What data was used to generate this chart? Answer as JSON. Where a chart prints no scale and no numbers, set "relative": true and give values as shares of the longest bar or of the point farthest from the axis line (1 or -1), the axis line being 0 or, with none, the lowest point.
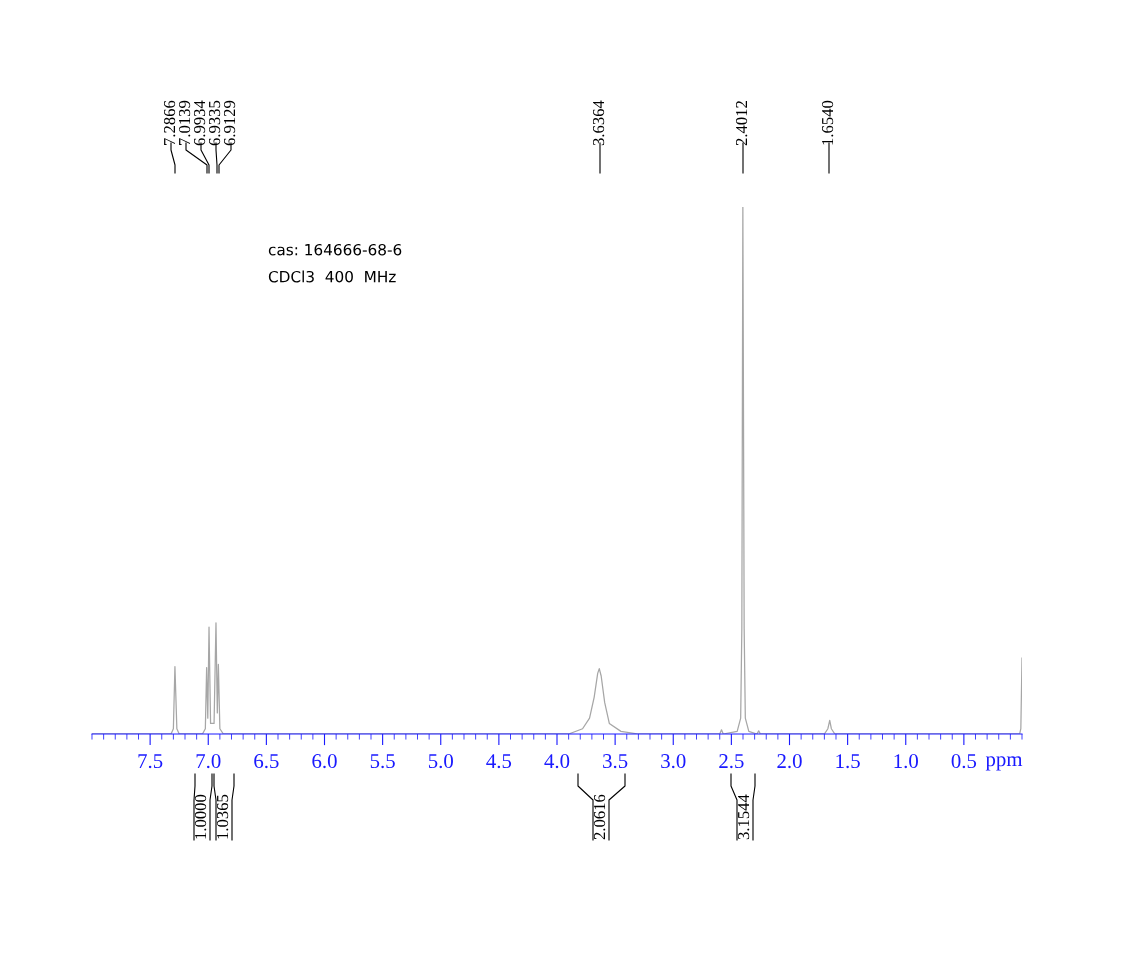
{
  "chart_data": {
    "type": "line",
    "relative": true,
    "xlabel": "ppm",
    "x": [
      8.0,
      7.32,
      7.3,
      7.2866,
      7.27,
      7.25,
      7.05,
      7.025,
      7.0139,
      7.004,
      6.9934,
      6.98,
      6.95,
      6.9335,
      6.922,
      6.9129,
      6.9,
      6.87,
      3.9,
      3.78,
      3.72,
      3.68,
      3.65,
      3.6364,
      3.62,
      3.59,
      3.55,
      3.45,
      3.3,
      2.6,
      2.585,
      2.57,
      2.45,
      2.42,
      2.41,
      2.4012,
      2.39,
      2.38,
      2.35,
      2.28,
      2.265,
      2.25,
      1.7,
      1.67,
      1.654,
      1.64,
      1.61,
      0.02,
      0.01,
      0.0
    ],
    "series": [
      {
        "color": "#a6a6a6",
        "values": [
          0.0,
          0.0,
          0.01,
          0.128,
          0.01,
          0.0,
          0.0,
          0.01,
          0.126,
          0.03,
          0.203,
          0.02,
          0.02,
          0.211,
          0.04,
          0.132,
          0.01,
          0.0,
          0.0,
          0.01,
          0.03,
          0.07,
          0.115,
          0.124,
          0.11,
          0.06,
          0.02,
          0.005,
          0.0,
          0.0,
          0.008,
          0.0,
          0.005,
          0.03,
          0.2,
          1.0,
          0.2,
          0.03,
          0.005,
          0.0,
          0.006,
          0.0,
          0.0,
          0.01,
          0.026,
          0.01,
          0.0,
          0.0,
          0.01,
          0.144
        ]
      }
    ],
    "xlim": [
      8.0,
      0.0
    ],
    "xticks": [
      7.5,
      {
        "value": 7.0,
        "label": "7.0"
      },
      6.5,
      {
        "value": 6.0,
        "label": "6.0"
      },
      5.5,
      {
        "value": 5.0,
        "label": "5.0"
      },
      4.5,
      {
        "value": 4.0,
        "label": "4.0"
      },
      3.5,
      {
        "value": 3.0,
        "label": "3.0"
      },
      2.5,
      {
        "value": 2.0,
        "label": "2.0"
      },
      1.5,
      {
        "value": 1.0,
        "label": "1.0"
      },
      0.5
    ],
    "grid": false,
    "marker": "none",
    "line_style": "solid",
    "annotations": [
      "7.2866",
      "7.0139",
      "6.9934",
      "6.9335",
      "6.9129",
      "3.6364",
      "2.4012",
      "1.6540",
      "1.0000",
      "1.0365",
      "2.0616",
      "3.1544",
      "cas: 164666-68-6",
      "CDCl3  400  MHz"
    ]
  }
}
